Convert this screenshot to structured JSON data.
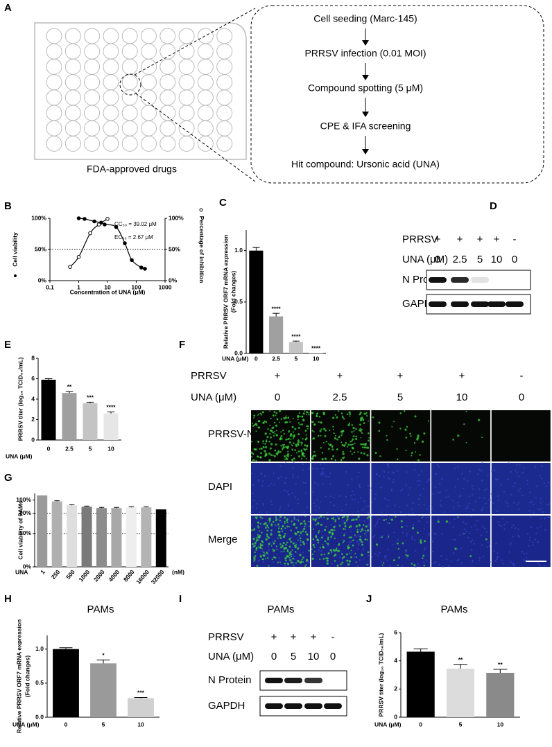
{
  "panel_A": {
    "letter": "A",
    "plate_label": "FDA-approved drugs",
    "steps": [
      "Cell seeding (Marc-145)",
      "PRRSV infection (0.01 MOI)",
      "Compound spotting (5 μM)",
      "CPE & IFA screening",
      "Hit compound: Ursonic acid (UNA)"
    ]
  },
  "panel_D": {
    "letter": "D",
    "rows": [
      {
        "label": "PRRSV",
        "values": [
          "+",
          "+",
          "+",
          "+",
          "-"
        ]
      },
      {
        "label": "UNA (μM)",
        "values": [
          "0",
          "2.5",
          "5",
          "10",
          "0"
        ]
      }
    ],
    "blots": [
      "N Protein",
      "GAPDH"
    ]
  },
  "panel_F": {
    "letter": "F",
    "rows": [
      {
        "label": "PRRSV",
        "values": [
          "+",
          "+",
          "+",
          "+",
          "-"
        ]
      },
      {
        "label": "UNA (μM)",
        "values": [
          "0",
          "2.5",
          "5",
          "10",
          "0"
        ]
      }
    ],
    "channels": [
      "PRRSV-N",
      "DAPI",
      "Merge"
    ]
  },
  "panel_I": {
    "letter": "I",
    "title": "PAMs",
    "rows": [
      {
        "label": "PRRSV",
        "values": [
          "+",
          "+",
          "+",
          "-"
        ]
      },
      {
        "label": "UNA (μM)",
        "values": [
          "0",
          "5",
          "10",
          "0"
        ]
      }
    ],
    "blots": [
      "N Protein",
      "GAPDH"
    ]
  },
  "chart_data": [
    {
      "type": "dose_response",
      "panel": "B",
      "xlabel": "Concentration of UNA (μM)",
      "log_x": true,
      "xlim": [
        0.1,
        1000
      ],
      "xticks": [
        0.1,
        1,
        10,
        100,
        1000
      ],
      "ylim": [
        0,
        100
      ],
      "yticks": [
        {
          "value": 0,
          "label": "0%"
        },
        {
          "value": 50,
          "label": "50%"
        },
        {
          "value": 100,
          "label": "100%"
        }
      ],
      "y2lim": [
        0,
        100
      ],
      "y2ticks": [
        {
          "value": 0,
          "label": "0%"
        },
        {
          "value": 50,
          "label": "50%"
        },
        {
          "value": 100,
          "label": "100%"
        }
      ],
      "ref_lines": [
        50
      ],
      "series": [
        {
          "name": "Cell viability",
          "marker": "filled",
          "color": "#000000",
          "x": [
            1,
            1.6,
            3.5,
            6,
            8,
            20,
            40,
            70,
            150,
            200
          ],
          "values": [
            100,
            99,
            95,
            93,
            90,
            86,
            60,
            33,
            21,
            19
          ]
        },
        {
          "name": "Percentage of inhibition",
          "marker": "open",
          "axis": "y2",
          "color": "#000000",
          "x": [
            0.5,
            1,
            2.5,
            5,
            10
          ],
          "values": [
            22,
            38,
            76,
            90,
            99
          ]
        }
      ],
      "annotations": [
        "CC₅₀ = 39.02 μM",
        "EC₅₀ = 2.67 μM"
      ]
    },
    {
      "type": "bar",
      "panel": "C",
      "ylabel": [
        "Relative PRRSV ORF7 mRNA expression",
        "(Fold changes)"
      ],
      "xlabel": "UNA (μM)",
      "categories": [
        "0",
        "2.5",
        "5",
        "10"
      ],
      "values": [
        1.0,
        0.36,
        0.11,
        0.005
      ],
      "errors": [
        0.03,
        0.03,
        0.01,
        0
      ],
      "colors": [
        "#000000",
        "#a0a0a0",
        "#c4c4c4",
        "#e6e6e6"
      ],
      "ylim": [
        0,
        1.2
      ],
      "yticks": [
        {
          "value": 0,
          "label": "0.0"
        },
        {
          "value": 0.5,
          "label": "0.5"
        },
        {
          "value": 1,
          "label": "1.0"
        }
      ],
      "significance": [
        null,
        "****",
        "****",
        "****"
      ]
    },
    {
      "type": "bar",
      "panel": "E",
      "ylabel": "PRRSV titer (log₁₀ TCID₅₀/mL)",
      "xlabel": "UNA (μM)",
      "categories": [
        "0",
        "2.5",
        "5",
        "10"
      ],
      "values": [
        5.9,
        4.6,
        3.6,
        2.6
      ],
      "errors": [
        0.1,
        0.15,
        0.1,
        0.15
      ],
      "colors": [
        "#000000",
        "#a0a0a0",
        "#c4c4c4",
        "#e6e6e6"
      ],
      "ylim": [
        0,
        8
      ],
      "yticks": [
        0,
        2,
        4,
        6,
        8
      ],
      "significance": [
        null,
        "**",
        "***",
        "****"
      ]
    },
    {
      "type": "bar",
      "panel": "G",
      "ylabel": "Cell viability of PAMs",
      "xlabel": "UNA",
      "x_unit": "(nM)",
      "categories": [
        "1",
        "250",
        "500",
        "1000",
        "2000",
        "4000",
        "8000",
        "16000",
        "32000"
      ],
      "values": [
        107,
        98,
        92,
        90,
        88,
        88,
        89,
        89,
        86
      ],
      "errors": [
        0,
        1,
        1,
        1,
        1,
        1,
        1,
        1,
        0
      ],
      "colors": [
        "#9a9a9a",
        "#b0b0b0",
        "#dedede",
        "#7a7a7a",
        "#8c8c8c",
        "#a8a8a8",
        "#eeeeee",
        "#b4b4b4",
        "#000000"
      ],
      "ylim": [
        0,
        110
      ],
      "yticks": [
        {
          "value": 0,
          "label": "0%"
        },
        {
          "value": 50,
          "label": "50%"
        },
        {
          "value": 80,
          "label": "80%"
        },
        {
          "value": 100,
          "label": "100%"
        }
      ],
      "ref_lines": [
        50,
        80
      ]
    },
    {
      "type": "bar",
      "panel": "H",
      "title": "PAMs",
      "ylabel": [
        "Relative PRRSV ORF7 mRNA expression",
        "(Fold changes)"
      ],
      "xlabel": "UNA (μM)",
      "categories": [
        "0",
        "5",
        "10"
      ],
      "values": [
        1.0,
        0.79,
        0.28
      ],
      "errors": [
        0.02,
        0.05,
        0.01
      ],
      "colors": [
        "#000000",
        "#9a9a9a",
        "#d0d0d0"
      ],
      "ylim": [
        0,
        1.2
      ],
      "yticks": [
        {
          "value": 0,
          "label": "0.0"
        },
        {
          "value": 0.5,
          "label": "0.5"
        },
        {
          "value": 1,
          "label": "1.0"
        }
      ],
      "significance": [
        null,
        "*",
        "***"
      ]
    },
    {
      "type": "bar",
      "panel": "J",
      "title": "PAMs",
      "ylabel": "PRRSV titer (log₁₀ TCID₅₀/mL)",
      "xlabel": "UNA (μM)",
      "categories": [
        "0",
        "5",
        "10"
      ],
      "values": [
        4.65,
        3.45,
        3.15
      ],
      "errors": [
        0.2,
        0.3,
        0.25
      ],
      "colors": [
        "#000000",
        "#dcdcdc",
        "#8a8a8a"
      ],
      "ylim": [
        0,
        6
      ],
      "yticks": [
        0,
        2,
        4,
        6
      ],
      "significance": [
        null,
        "**",
        "**"
      ]
    }
  ]
}
